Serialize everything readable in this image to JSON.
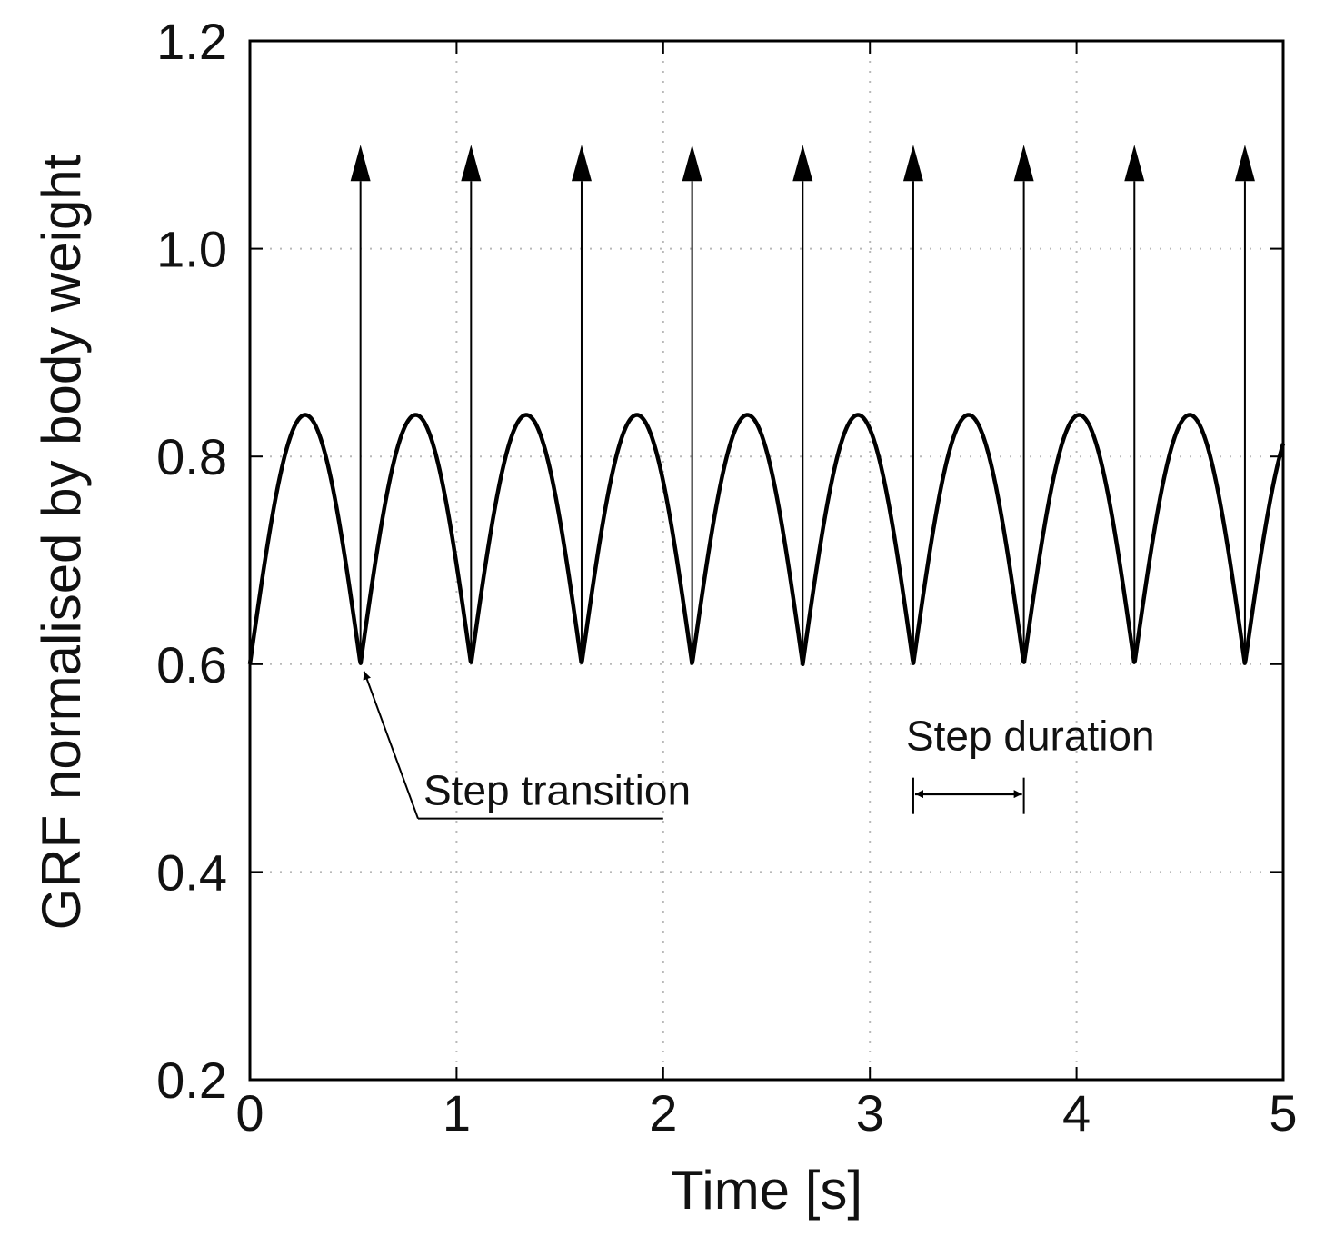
{
  "chart_data": {
    "type": "line",
    "title": "",
    "xlabel": "Time [s]",
    "ylabel": "GRF normalised by body weight",
    "xlim": [
      0,
      5
    ],
    "ylim": [
      0.2,
      1.2
    ],
    "xticks": [
      0,
      1,
      2,
      3,
      4,
      5
    ],
    "xtick_labels": [
      "0",
      "1",
      "2",
      "3",
      "4",
      "5"
    ],
    "yticks": [
      0.2,
      0.4,
      0.6,
      0.8,
      1.0,
      1.2
    ],
    "ytick_labels": [
      "0.2",
      "0.4",
      "0.6",
      "0.8",
      "1.0",
      "1.2"
    ],
    "grid": true,
    "series": [
      {
        "name": "GRF",
        "kind": "rectified-sine",
        "baseline": 0.6,
        "peak": 0.84,
        "step_duration_s": 0.535,
        "x_start": 0,
        "x_end": 5
      }
    ],
    "step_impulses": {
      "times": [
        0.535,
        1.07,
        1.605,
        2.14,
        2.675,
        3.21,
        3.745,
        4.28,
        4.815
      ],
      "from": 0.6,
      "to": 1.1
    },
    "annotations": [
      {
        "text": "Step transition",
        "points_to": {
          "x": 0.535,
          "y": 0.6
        },
        "label_anchor": {
          "x": 2.0,
          "y": 0.475
        }
      },
      {
        "text": "Step duration",
        "span": [
          3.21,
          3.745
        ],
        "y": 0.475
      }
    ],
    "colors": {
      "line": "#000000",
      "grid": "#b8b8b8",
      "axis": "#000000"
    }
  }
}
